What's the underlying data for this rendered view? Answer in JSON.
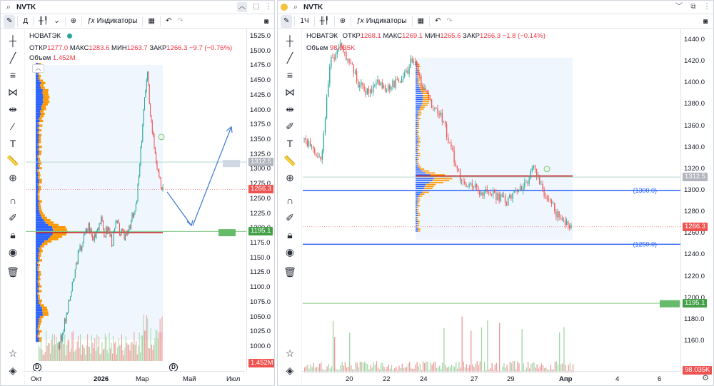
{
  "left": {
    "symbol": "NVTK",
    "interval": "Д",
    "indicators_label": "Индикаторы",
    "legend": {
      "name": "НОВАТЭК",
      "open_label": "ОТКР",
      "open": "1277.0",
      "high_label": "МАКС",
      "high": "1283.6",
      "low_label": "МИН",
      "low": "1263.7",
      "close_label": "ЗАКР",
      "close": "1266.3",
      "change": "−9.7 (−0.76%)",
      "volume_label": "Объем",
      "volume": "1.452M"
    },
    "price_ticks": [
      "1525.0",
      "1500.0",
      "1475.0",
      "1450.0",
      "1425.0",
      "1400.0",
      "1375.0",
      "1350.0",
      "1325.0",
      "1300.0",
      "1275.0",
      "1250.0",
      "1225.0",
      "1200.0",
      "1175.0",
      "1150.0",
      "1125.0",
      "1100.0",
      "1075.0",
      "1050.0",
      "1025.0",
      "1000.0"
    ],
    "badges": {
      "b1": "1312.5",
      "b2": "1266.3",
      "b3": "1195.1",
      "vol": "1.452M"
    },
    "time_ticks": [
      "Окт",
      "2026",
      "Мар",
      "Май",
      "Июл"
    ],
    "marker_b": "B",
    "marker_d": "D"
  },
  "right": {
    "symbol": "NVTK",
    "interval": "1Ч",
    "indicators_label": "Индикаторы",
    "legend": {
      "name": "НОВАТЭК",
      "open_label": "ОТКР",
      "open": "1268.1",
      "high_label": "МАКС",
      "high": "1269.1",
      "low_label": "МИН",
      "low": "1265.6",
      "close_label": "ЗАКР",
      "close": "1266.3",
      "change": "−1.8 (−0.14%)",
      "volume_label": "Объем",
      "volume": "98.035K"
    },
    "price_ticks": [
      "1440.0",
      "1420.0",
      "1400.0",
      "1380.0",
      "1360.0",
      "1340.0",
      "1320.0",
      "1300.0",
      "1280.0",
      "1260.0",
      "1240.0",
      "1220.0",
      "1200.0",
      "1180.0",
      "1160.0"
    ],
    "badges": {
      "b1": "1312.5",
      "b2": "1266.3",
      "b3": "1195.1",
      "vol": "98.035K"
    },
    "line_labels": {
      "l1": "(1300.0)",
      "l2": "(1250.0)"
    },
    "time_ticks": [
      "20",
      "22",
      "24",
      "27",
      "29",
      "Апр",
      "4",
      "6"
    ],
    "marker_b": "B"
  },
  "colors": {
    "up": "#26a69a",
    "down": "#ef5350",
    "poc": "#f23645",
    "blue_line": "#2962ff",
    "green_line": "#4caf50",
    "profile_up": "#2962ff",
    "profile_down": "#ff9800"
  }
}
